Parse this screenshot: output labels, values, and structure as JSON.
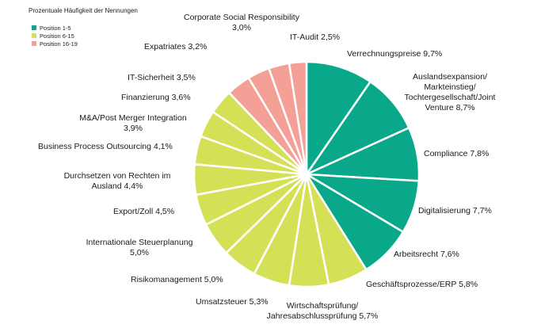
{
  "chart_data": {
    "type": "pie",
    "title": "Prozentuale Häufigkeit der Nennungen",
    "legend": [
      {
        "name": "Position 1-5",
        "color": "#0aa88a"
      },
      {
        "name": "Position 6-15",
        "color": "#d4e157"
      },
      {
        "name": "Position 16-19",
        "color": "#f4a097"
      }
    ],
    "slices": [
      {
        "label": "Verrechnungspreise 9,7%",
        "value": 9.7,
        "group": 0
      },
      {
        "label": "Auslandsexpansion/\nMarkteinstieg/\nTochtergesellschaft/Joint\nVenture 8,7%",
        "value": 8.7,
        "group": 0
      },
      {
        "label": "Compliance 7,8%",
        "value": 7.8,
        "group": 0
      },
      {
        "label": "Digitalisierung 7,7%",
        "value": 7.7,
        "group": 0
      },
      {
        "label": "Arbeitsrecht 7,6%",
        "value": 7.6,
        "group": 0
      },
      {
        "label": "Geschäftsprozesse/ERP 5,8%",
        "value": 5.8,
        "group": 1
      },
      {
        "label": "Wirtschaftsprüfung/\nJahresabschlussprüfung 5,7%",
        "value": 5.7,
        "group": 1
      },
      {
        "label": "Umsatzsteuer 5,3%",
        "value": 5.3,
        "group": 1
      },
      {
        "label": "Risikomanagement 5,0%",
        "value": 5.0,
        "group": 1
      },
      {
        "label": "Internationale Steuerplanung\n5,0%",
        "value": 5.0,
        "group": 1
      },
      {
        "label": "Export/Zoll 4,5%",
        "value": 4.5,
        "group": 1
      },
      {
        "label": "Durchsetzen von Rechten im\nAusland 4,4%",
        "value": 4.4,
        "group": 1
      },
      {
        "label": "Business Process Outsourcing 4,1%",
        "value": 4.1,
        "group": 1
      },
      {
        "label": "M&A/Post Merger Integration\n3,9%",
        "value": 3.9,
        "group": 1
      },
      {
        "label": "Finanzierung 3,6%",
        "value": 3.6,
        "group": 1
      },
      {
        "label": "IT-Sicherheit 3,5%",
        "value": 3.5,
        "group": 2
      },
      {
        "label": "Expatriates 3,2%",
        "value": 3.2,
        "group": 2
      },
      {
        "label": "Corporate Social Responsibility\n3,0%",
        "value": 3.0,
        "group": 2
      },
      {
        "label": "IT-Audit 2,5%",
        "value": 2.5,
        "group": 2
      }
    ]
  }
}
